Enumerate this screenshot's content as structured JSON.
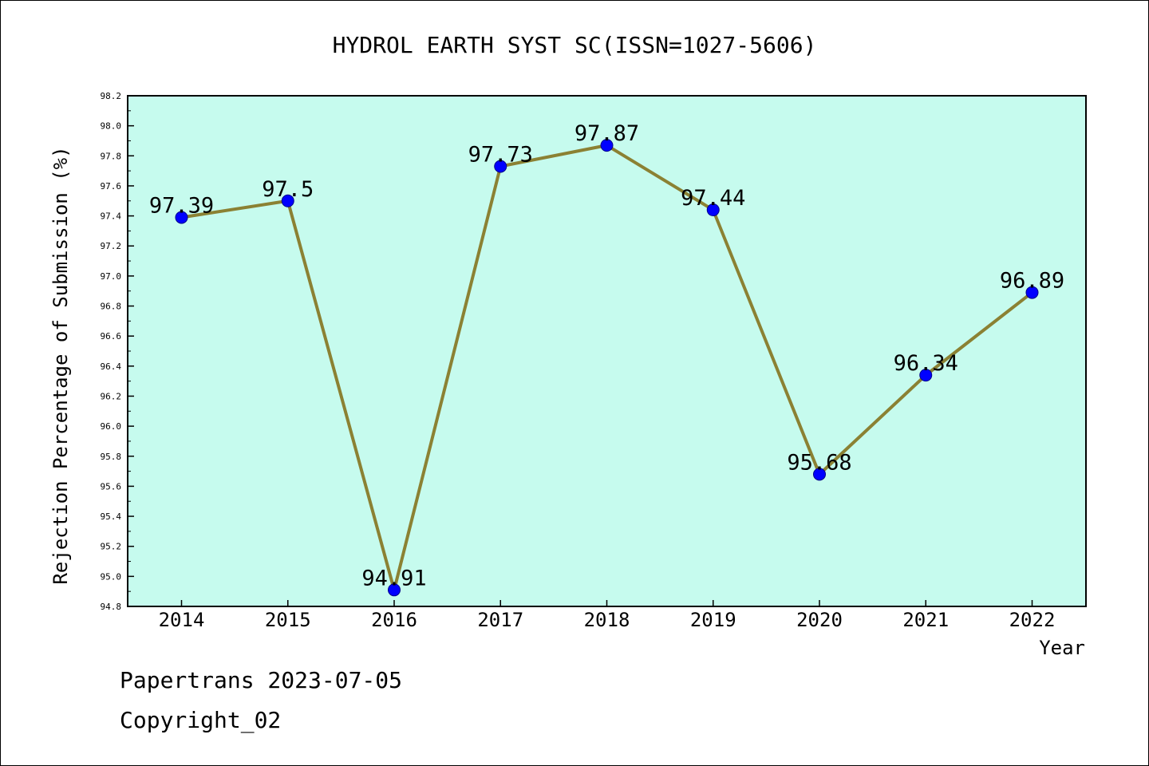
{
  "chart_data": {
    "type": "line",
    "title": "HYDROL EARTH SYST SC(ISSN=1027-5606)",
    "xlabel": "Year",
    "ylabel": "Rejection Percentage of Submission (%)",
    "categories": [
      "2014",
      "2015",
      "2016",
      "2017",
      "2018",
      "2019",
      "2020",
      "2021",
      "2022"
    ],
    "values": [
      97.39,
      97.5,
      94.91,
      97.73,
      97.87,
      97.44,
      95.68,
      96.34,
      96.89
    ],
    "data_labels": [
      "97.39",
      "97.5",
      "94.91",
      "97.73",
      "97.87",
      "97.44",
      "95.68",
      "96.34",
      "96.89"
    ],
    "ylim": [
      94.8,
      98.2
    ],
    "yticks": [
      "94.8",
      "95.0",
      "95.2",
      "95.4",
      "95.6",
      "95.8",
      "96.0",
      "96.2",
      "96.4",
      "96.6",
      "96.8",
      "97.0",
      "97.2",
      "97.4",
      "97.6",
      "97.8",
      "98.0",
      "98.2"
    ],
    "grid": false,
    "colors": {
      "plot_background": "#c6fbee",
      "line": "#8b8133",
      "marker": "#0000ff"
    }
  },
  "footer": {
    "line1": "Papertrans 2023-07-05",
    "line2": "Copyright_02"
  }
}
